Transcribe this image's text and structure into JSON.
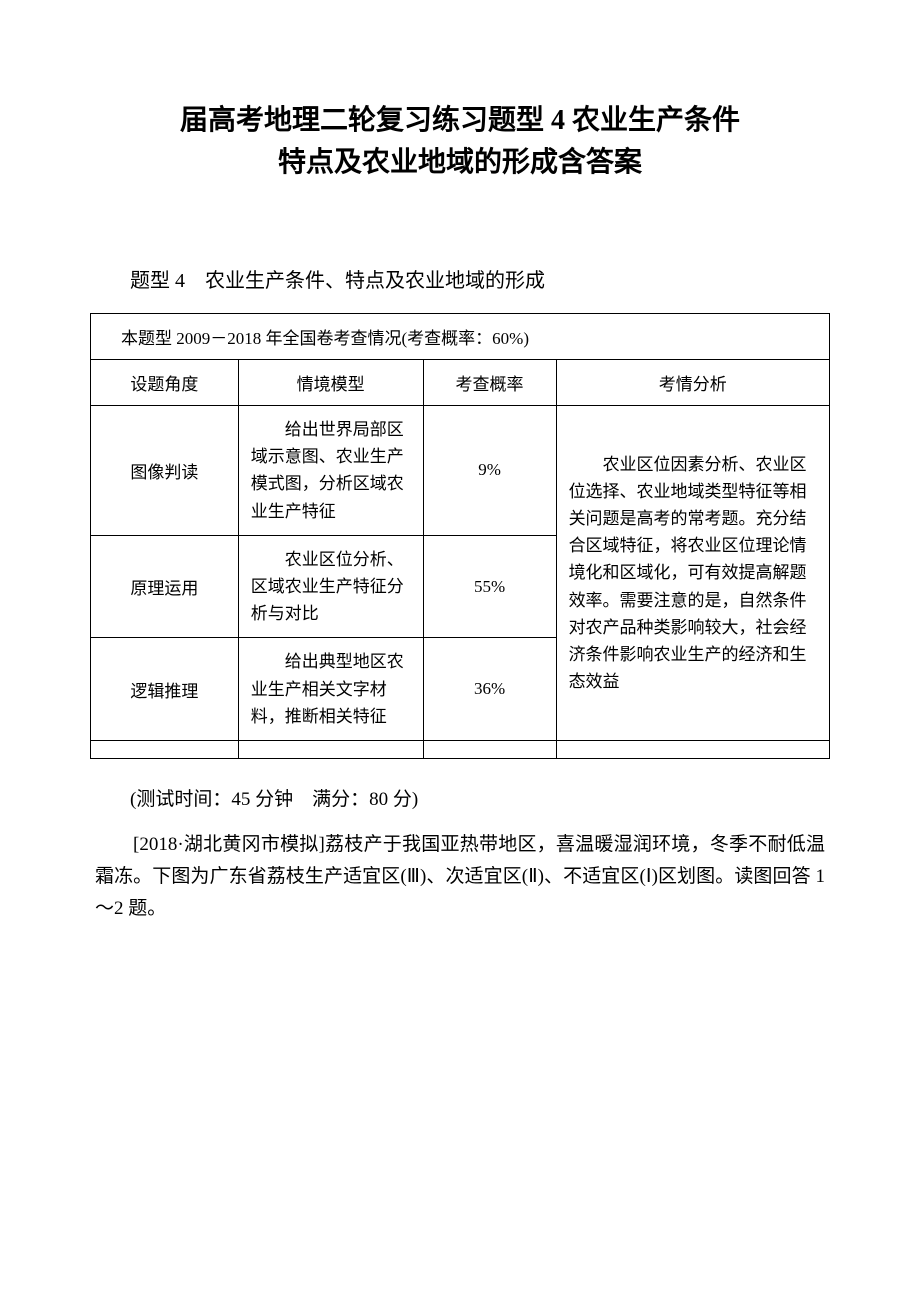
{
  "title": {
    "line1": "届高考地理二轮复习练习题型 4 农业生产条件",
    "line2": "特点及农业地域的形成含答案"
  },
  "subtitle": "题型 4　农业生产条件、特点及农业地域的形成",
  "table": {
    "caption": "本题型 2009－2018 年全国卷考查情况(考查概率：60%)",
    "headers": {
      "col1": "设题角度",
      "col2": "情境模型",
      "col3": "考查概率",
      "col4": "考情分析"
    },
    "rows": [
      {
        "angle": "图像判读",
        "model": "给出世界局部区域示意图、农业生产模式图，分析区域农业生产特征",
        "prob": "9%"
      },
      {
        "angle": "原理运用",
        "model": "农业区位分析、区域农业生产特征分析与对比",
        "prob": "55%"
      },
      {
        "angle": "逻辑推理",
        "model": "给出典型地区农业生产相关文字材料，推断相关特征",
        "prob": "36%"
      }
    ],
    "analysis": "农业区位因素分析、农业区位选择、农业地域类型特征等相关问题是高考的常考题。充分结合区域特征，将农业区位理论情境化和区域化，可有效提高解题效率。需要注意的是，自然条件对农产品种类影响较大，社会经济条件影响农业生产的经济和生态效益"
  },
  "testInfo": "(测试时间：45 分钟　满分：80 分)",
  "passage": "[2018·湖北黄冈市模拟]荔枝产于我国亚热带地区，喜温暖湿润环境，冬季不耐低温霜冻。下图为广东省荔枝生产适宜区(Ⅲ)、次适宜区(Ⅱ)、不适宜区(Ⅰ)区划图。读图回答 1～2 题。",
  "styling": {
    "background_color": "#ffffff",
    "text_color": "#000000",
    "border_color": "#000000",
    "title_fontsize": 28,
    "subtitle_fontsize": 20,
    "body_fontsize": 19,
    "table_fontsize": 17,
    "font_family": "SimSun"
  }
}
